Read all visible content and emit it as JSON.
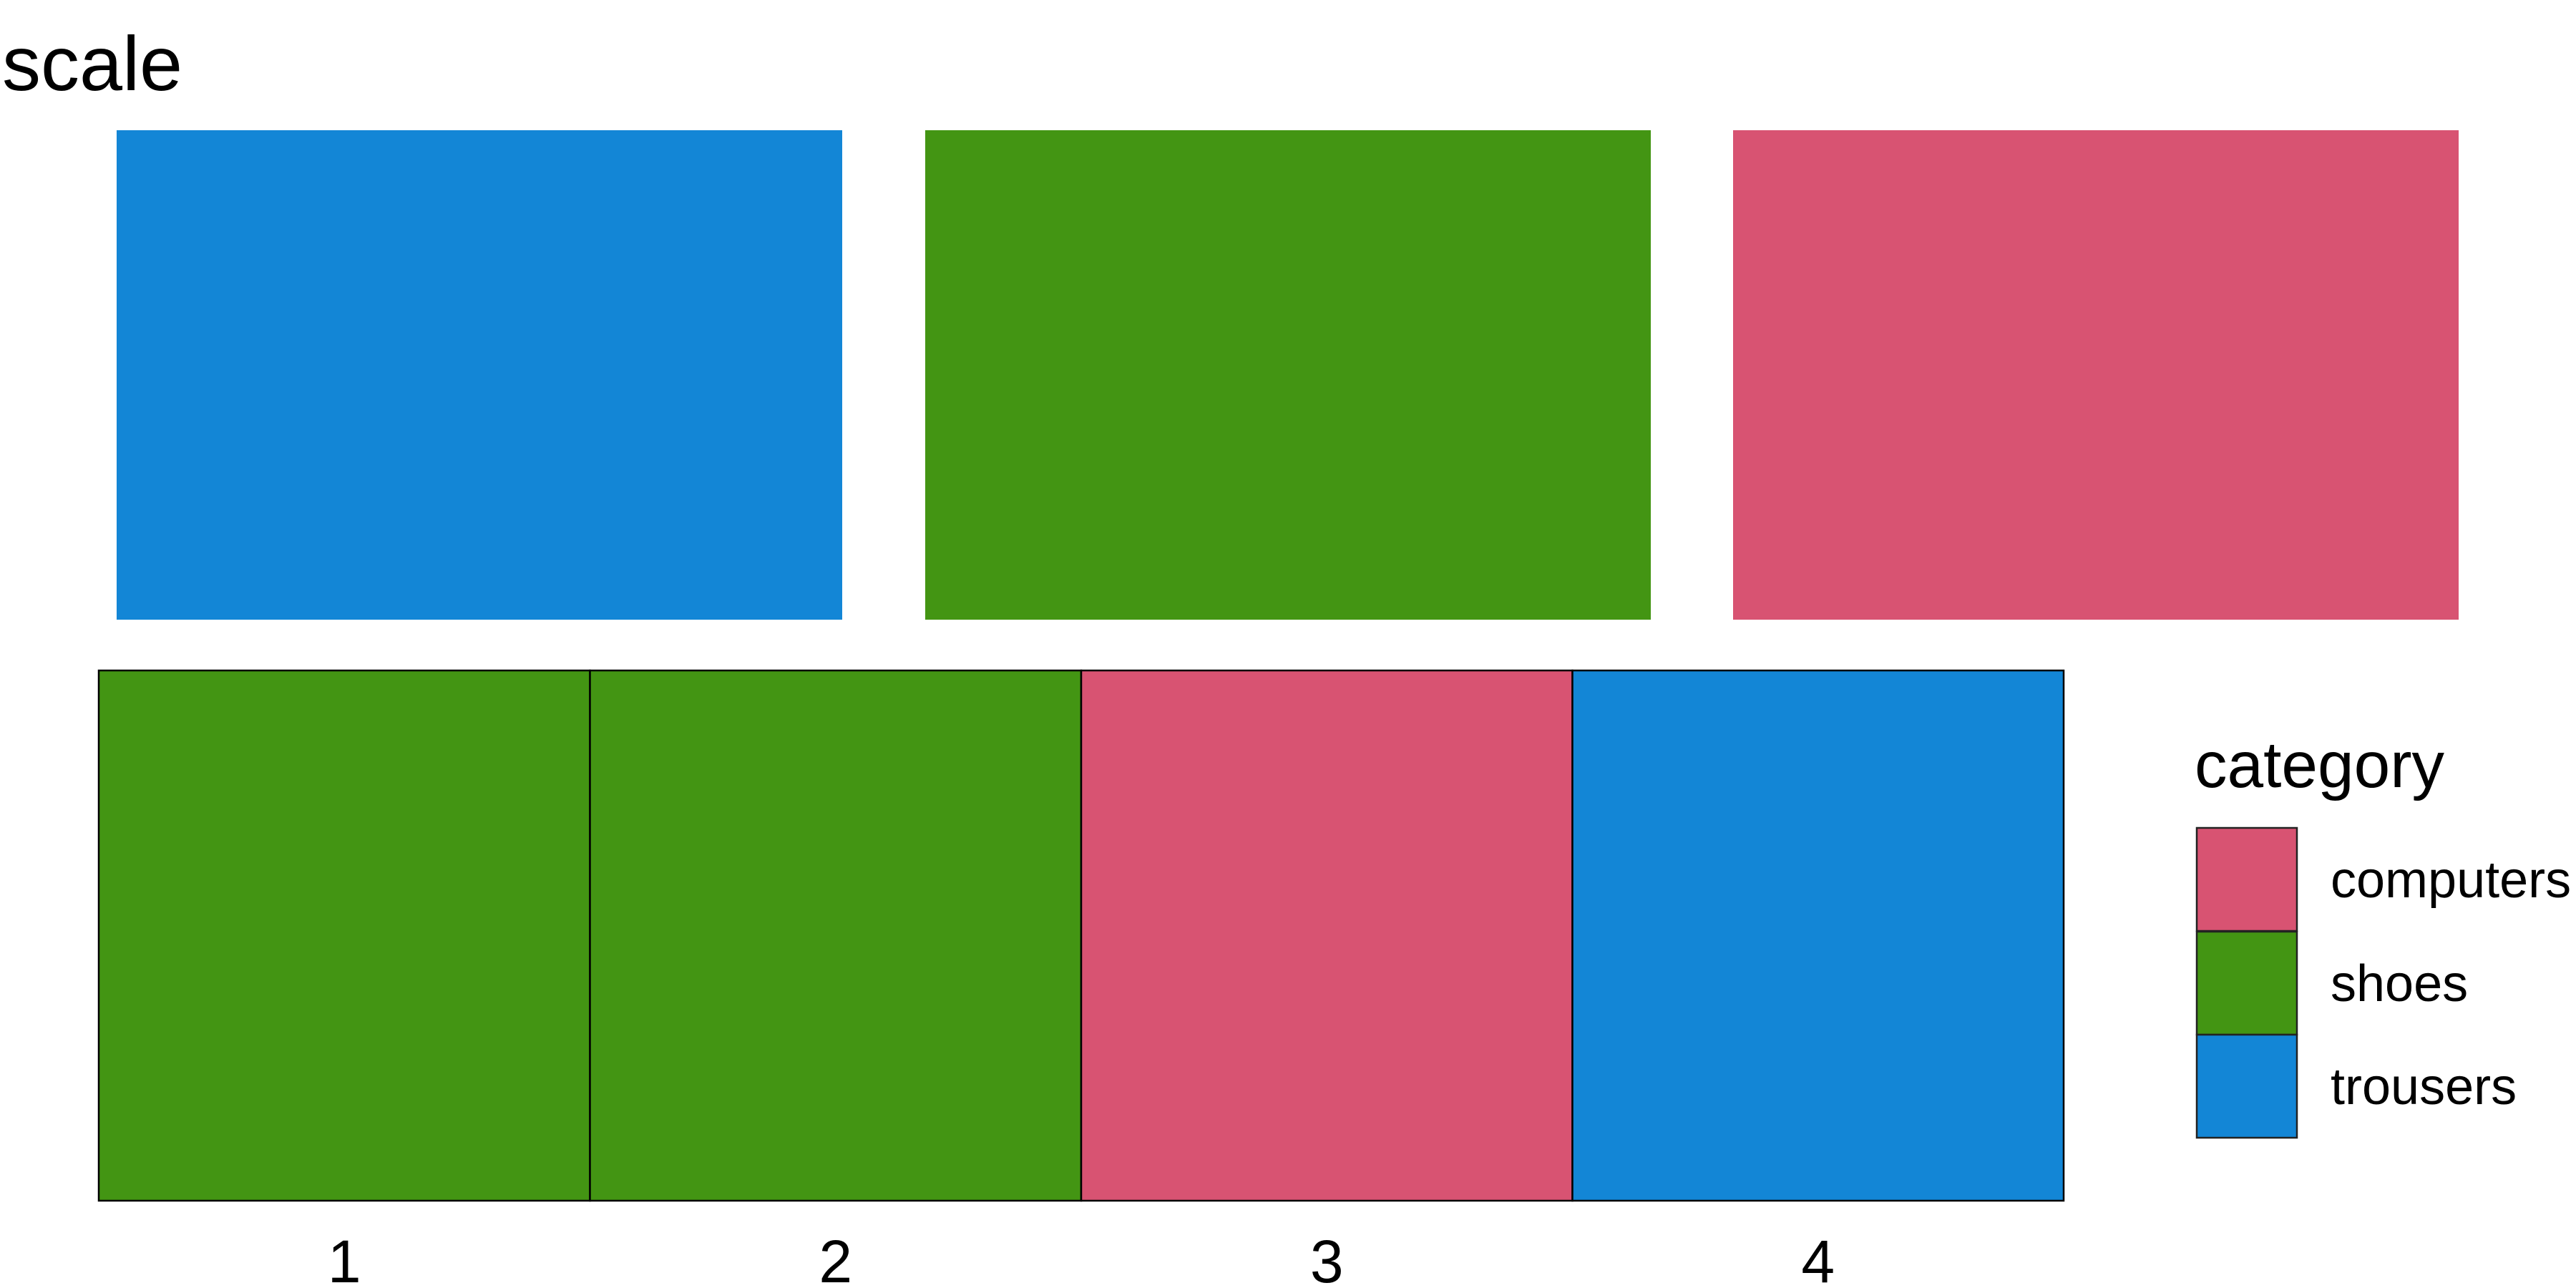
{
  "chart_data": {
    "type": "heatmap",
    "title": "scale",
    "palette_swatches": [
      {
        "color": "#1386d6"
      },
      {
        "color": "#439513"
      },
      {
        "color": "#d85372"
      }
    ],
    "x": [
      "1",
      "2",
      "3",
      "4"
    ],
    "tiles": [
      {
        "x": "1",
        "category": "shoes"
      },
      {
        "x": "2",
        "category": "shoes"
      },
      {
        "x": "3",
        "category": "computers"
      },
      {
        "x": "4",
        "category": "trousers"
      }
    ],
    "legend": {
      "title": "category",
      "position": "right",
      "items": [
        {
          "label": "computers",
          "color": "#d85372"
        },
        {
          "label": "shoes",
          "color": "#439513"
        },
        {
          "label": "trousers",
          "color": "#1386d6"
        }
      ]
    }
  }
}
